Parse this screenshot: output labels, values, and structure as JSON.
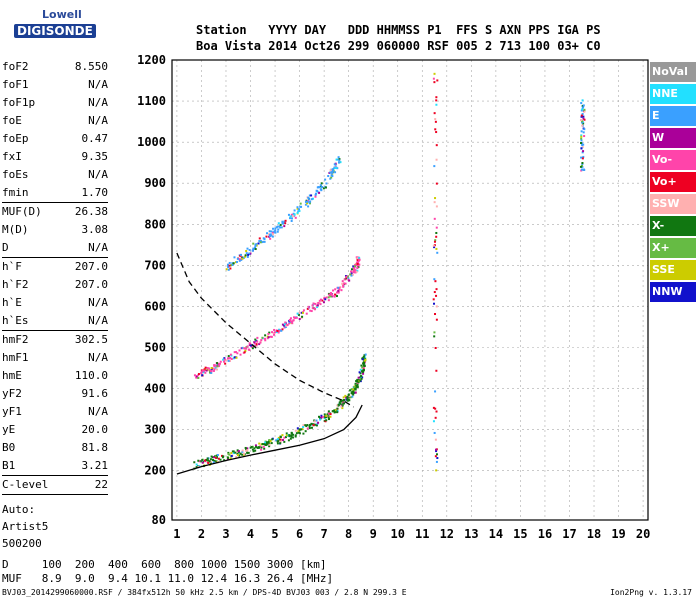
{
  "logo": {
    "line1": "Lowell",
    "line2": "DIGISONDE"
  },
  "header": {
    "line1": "Station   YYYY DAY   DDD HHMMSS P1  FFS S AXN PPS IGA PS",
    "line2": "Boa Vista 2014 Oct26 299 060000 RSF 005 2 713 100 03+ C0"
  },
  "params": {
    "group1": [
      {
        "label": "foF2",
        "value": "8.550"
      },
      {
        "label": "foF1",
        "value": "N/A"
      },
      {
        "label": "foF1p",
        "value": "N/A"
      },
      {
        "label": "foE",
        "value": "N/A"
      },
      {
        "label": "foEp",
        "value": "0.47"
      },
      {
        "label": "fxI",
        "value": "9.35"
      },
      {
        "label": "foEs",
        "value": "N/A"
      },
      {
        "label": "fmin",
        "value": "1.70"
      }
    ],
    "group2": [
      {
        "label": "MUF(D)",
        "value": "26.38"
      },
      {
        "label": "M(D)",
        "value": "3.08"
      },
      {
        "label": "D",
        "value": "N/A"
      }
    ],
    "group3": [
      {
        "label": "h`F",
        "value": "207.0"
      },
      {
        "label": "h`F2",
        "value": "207.0"
      },
      {
        "label": "h`E",
        "value": "N/A"
      },
      {
        "label": "h`Es",
        "value": "N/A"
      }
    ],
    "group4": [
      {
        "label": "hmF2",
        "value": "302.5"
      },
      {
        "label": "hmF1",
        "value": "N/A"
      },
      {
        "label": "hmE",
        "value": "110.0"
      },
      {
        "label": "yF2",
        "value": "91.6"
      },
      {
        "label": "yF1",
        "value": "N/A"
      },
      {
        "label": "yE",
        "value": "20.0"
      },
      {
        "label": "B0",
        "value": "81.8"
      },
      {
        "label": "B1",
        "value": "3.21"
      }
    ],
    "group5": [
      {
        "label": "C-level",
        "value": "22"
      }
    ],
    "auto_lines": [
      "Auto:",
      "Artist5",
      "500200"
    ]
  },
  "legend": [
    {
      "label": "NoVal",
      "color": "#999999"
    },
    {
      "label": "NNE",
      "color": "#22e0ff"
    },
    {
      "label": "E",
      "color": "#3aa0ff"
    },
    {
      "label": "W",
      "color": "#aa0099"
    },
    {
      "label": "Vo-",
      "color": "#ff44aa"
    },
    {
      "label": "Vo+",
      "color": "#ee0022"
    },
    {
      "label": "SSW",
      "color": "#ffb0b0"
    },
    {
      "label": "X-",
      "color": "#117711"
    },
    {
      "label": "X+",
      "color": "#66bb44"
    },
    {
      "label": "SSE",
      "color": "#cccc00"
    },
    {
      "label": "NNW",
      "color": "#1111cc"
    }
  ],
  "chart_data": {
    "type": "scatter",
    "title": "",
    "xlabel": "",
    "ylabel": "",
    "xlim": [
      0.8,
      20.2
    ],
    "ylim": [
      80,
      1200
    ],
    "x_ticks": [
      1,
      2,
      3,
      4,
      5,
      6,
      7,
      8,
      9,
      10,
      11,
      12,
      13,
      14,
      15,
      16,
      17,
      18,
      19,
      20
    ],
    "y_ticks": [
      80,
      200,
      300,
      400,
      500,
      600,
      700,
      800,
      900,
      1000,
      1100,
      1200
    ],
    "grid": true,
    "traces": [
      {
        "name": "F2 O-trace",
        "color": "#117711",
        "x": [
          1.7,
          2.5,
          3.5,
          4.5,
          5.5,
          6.5,
          7.2,
          7.8,
          8.2,
          8.5,
          8.6
        ],
        "y": [
          215,
          230,
          245,
          265,
          285,
          315,
          340,
          370,
          400,
          440,
          480
        ]
      },
      {
        "name": "F2 second hop",
        "color": "#ff44aa",
        "x": [
          1.7,
          2.5,
          3.5,
          4.5,
          5.5,
          6.5,
          7.5,
          8.2,
          8.4
        ],
        "y": [
          430,
          455,
          490,
          525,
          560,
          600,
          640,
          690,
          720
        ]
      },
      {
        "name": "F2 third hop",
        "color": "#3aa0ff",
        "x": [
          3.0,
          4.0,
          5.0,
          6.0,
          7.0,
          7.6
        ],
        "y": [
          700,
          740,
          790,
          840,
          900,
          960
        ]
      },
      {
        "name": "vertical interference 11.5",
        "color": "#ee0022",
        "x": [
          11.5,
          11.5
        ],
        "y": [
          200,
          1180
        ]
      },
      {
        "name": "vertical interference 17.5",
        "color": "#3aa0ff",
        "x": [
          17.5,
          17.5
        ],
        "y": [
          930,
          1100
        ]
      }
    ],
    "profile_solid": {
      "x": [
        1.0,
        2.0,
        3.0,
        4.0,
        5.0,
        6.0,
        7.0,
        7.8,
        8.3,
        8.55
      ],
      "y": [
        192,
        210,
        225,
        238,
        250,
        262,
        278,
        300,
        330,
        360
      ]
    },
    "profile_dashed": {
      "x": [
        1.0,
        1.5,
        2.0,
        2.5,
        3.0,
        4.0,
        5.0,
        6.0,
        7.0,
        7.8,
        8.2
      ],
      "y": [
        730,
        660,
        620,
        590,
        560,
        510,
        460,
        420,
        390,
        370,
        355
      ]
    }
  },
  "bottom": {
    "line1": "D     100  200  400  600  800 1000 1500 3000 [km]",
    "line2": "MUF   8.9  9.0  9.4 10.1 11.0 12.4 16.3 26.4 [MHz]"
  },
  "footer": "BVJ03_2014299060000.RSF / 384fx512h 50 kHz 2.5 km / DPS-4D BVJ03 003 / 2.8 N 299.3 E",
  "version": "Ion2Png v. 1.3.17"
}
